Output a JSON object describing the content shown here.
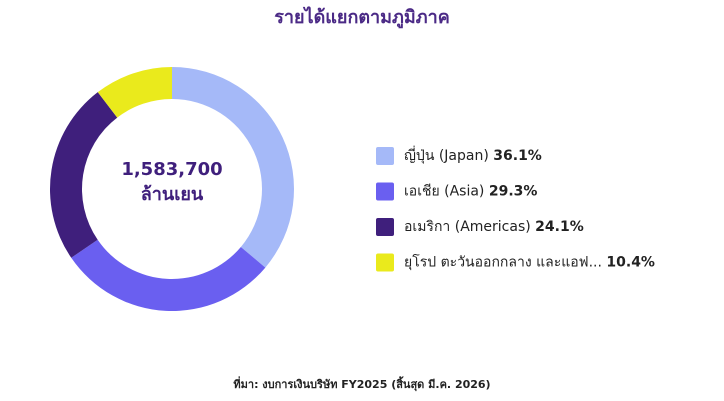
{
  "chart_data": {
    "type": "donut",
    "title": "รายได้แยกตามภูมิภาค",
    "center_label": "1,583,700",
    "center_unit": "ล้านเยน",
    "categories": [
      "ญี่ปุ่น (Japan)",
      "เอเชีย (Asia)",
      "อเมริกา (Americas)",
      "ยุโรป ตะวันออกกลาง และแอฟ..."
    ],
    "values": [
      36.1,
      29.3,
      24.1,
      10.4
    ],
    "value_labels": [
      "36.1%",
      "29.3%",
      "24.1%",
      "10.4%"
    ],
    "colors": [
      "#a5b9f8",
      "#6a5ff0",
      "#3f1f7c",
      "#eaea1c"
    ],
    "source": "ที่มา: งบการเงินบริษัท FY2025 (สิ้นสุด มี.ค. 2026)"
  }
}
